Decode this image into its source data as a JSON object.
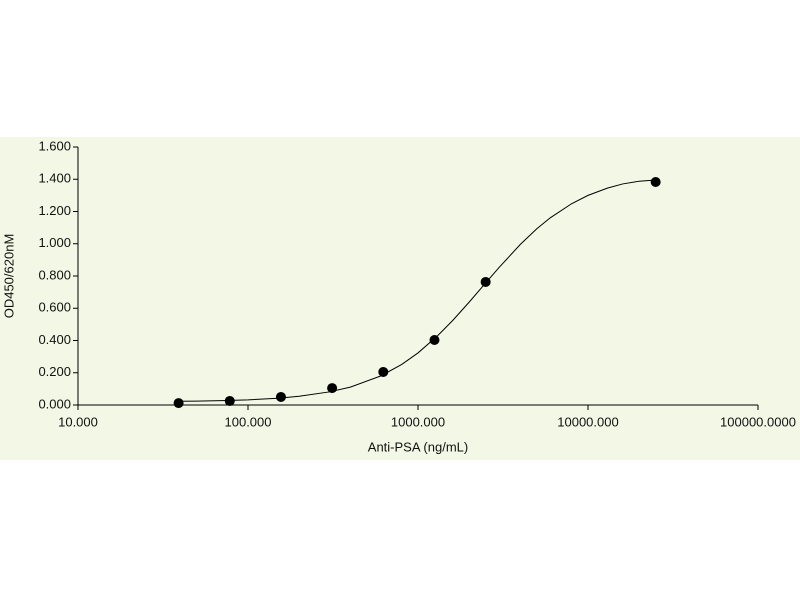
{
  "chart_data": {
    "type": "scatter",
    "x_label": "Anti-PSA (ng/mL)",
    "y_label": "OD450/620nM",
    "x": [
      39.0625,
      78.125,
      156.25,
      312.5,
      625,
      1250,
      2500,
      25000
    ],
    "values": [
      0.012,
      0.025,
      0.05,
      0.105,
      0.205,
      0.403,
      0.763,
      1.383
    ],
    "color": "#000000",
    "fit_x": [
      39,
      50,
      70,
      100,
      150,
      200,
      300,
      400,
      600,
      800,
      1000,
      1300,
      1600,
      2000,
      2500,
      3000,
      4000,
      5000,
      6000,
      8000,
      10000,
      13000,
      16000,
      20000,
      25000
    ],
    "fit_y": [
      0.023,
      0.024,
      0.027,
      0.032,
      0.042,
      0.054,
      0.081,
      0.111,
      0.179,
      0.251,
      0.323,
      0.428,
      0.524,
      0.638,
      0.757,
      0.853,
      0.996,
      1.093,
      1.161,
      1.248,
      1.3,
      1.345,
      1.371,
      1.388,
      1.395
    ],
    "log_x": true,
    "xlim": [
      10,
      100000
    ],
    "xticks": [
      {
        "value": 10,
        "label": "10.000"
      },
      {
        "value": 100,
        "label": "100.000"
      },
      {
        "value": 1000,
        "label": "1000.000"
      },
      {
        "value": 10000,
        "label": "10000.000"
      },
      {
        "value": 100000,
        "label": "100000.0000"
      }
    ],
    "ylim": [
      0,
      1.6
    ],
    "yticks": [
      {
        "value": 0,
        "label": "0.000"
      },
      {
        "value": 0.2,
        "label": "0.200"
      },
      {
        "value": 0.4,
        "label": "0.400"
      },
      {
        "value": 0.6,
        "label": "0.600"
      },
      {
        "value": 0.8,
        "label": "0.800"
      },
      {
        "value": 1.0,
        "label": "1.000"
      },
      {
        "value": 1.2,
        "label": "1.200"
      },
      {
        "value": 1.4,
        "label": "1.400"
      },
      {
        "value": 1.6,
        "label": "1.600"
      }
    ],
    "background": "#f3f8e6"
  }
}
